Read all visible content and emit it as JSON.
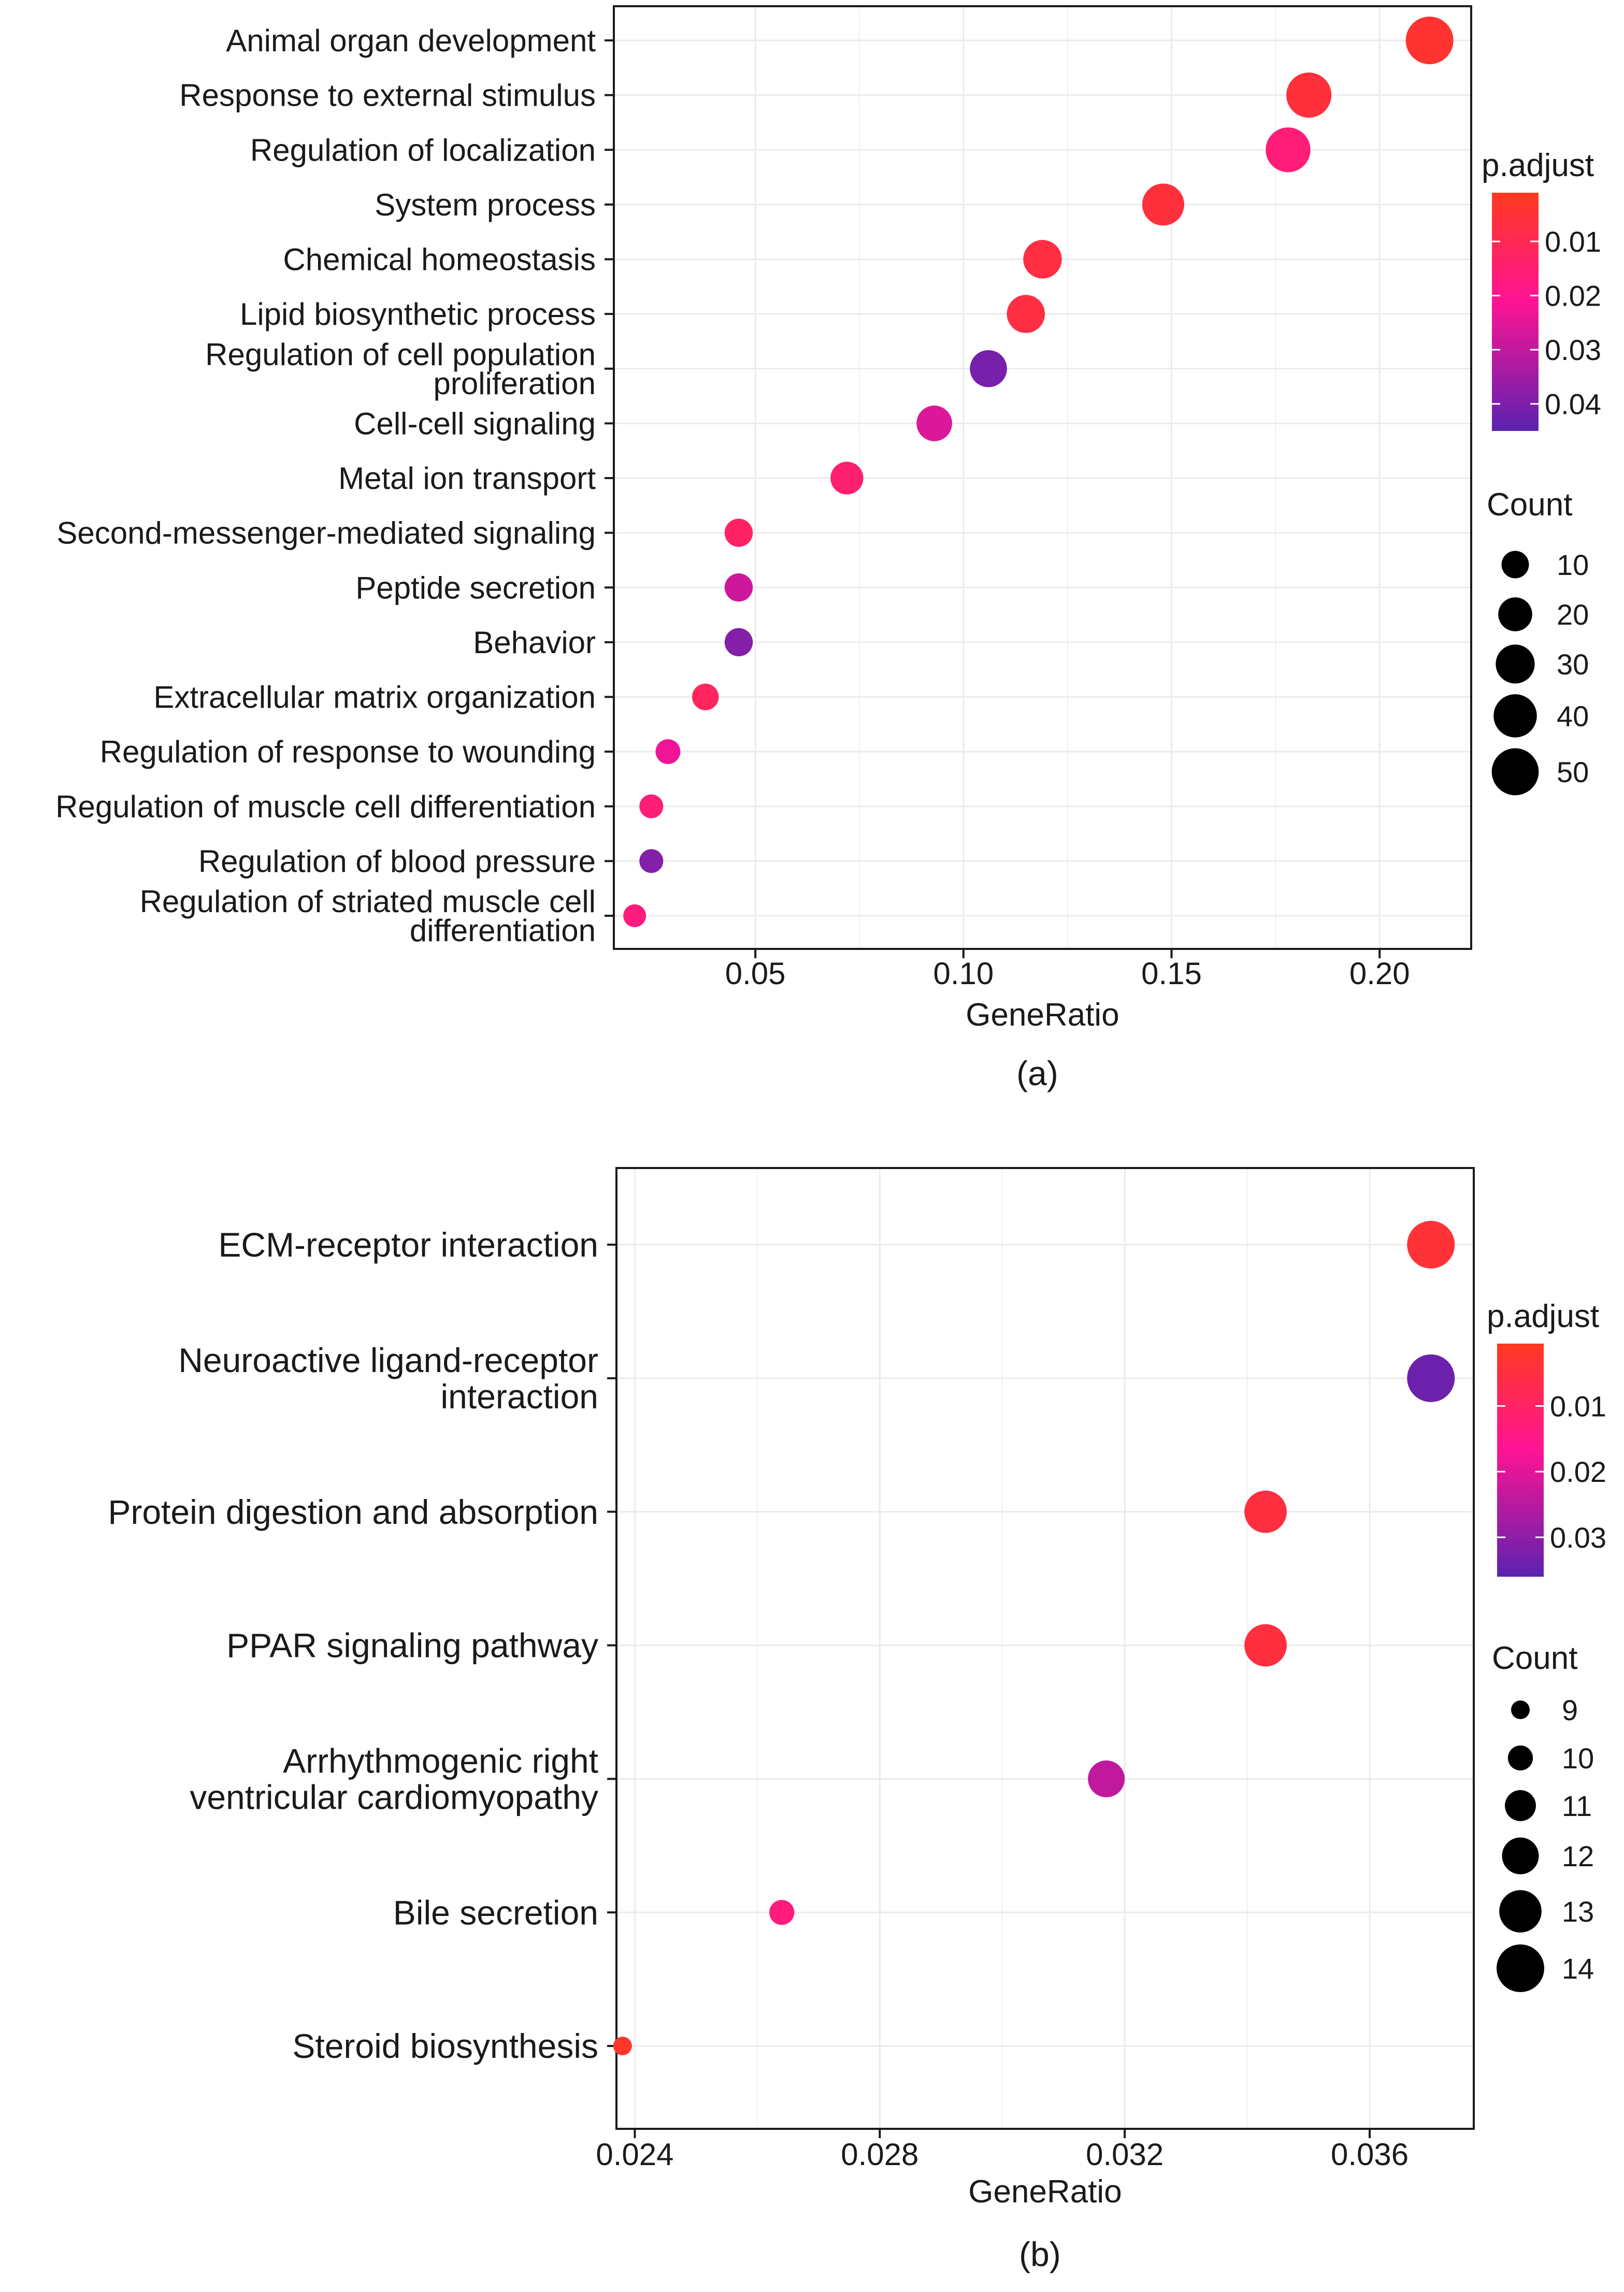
{
  "chart_data": [
    {
      "type": "scatter",
      "panel_label": "(a)",
      "xlabel": "GeneRatio",
      "xlim": [
        0.016,
        0.222
      ],
      "xticks": [
        0.05,
        0.1,
        0.15,
        0.2
      ],
      "xtick_labels": [
        "0.05",
        "0.10",
        "0.15",
        "0.20"
      ],
      "grid": true,
      "categories": [
        "Animal organ development",
        "Response to external stimulus",
        "Regulation of localization",
        "System process",
        "Chemical homeostasis",
        "Lipid biosynthetic process",
        "Regulation of cell population proliferation",
        "Cell-cell signaling",
        "Metal ion transport",
        "Second-messenger-mediated signaling",
        "Peptide secretion",
        "Behavior",
        "Extracellular matrix organization",
        "Regulation of response to wounding",
        "Regulation of muscle cell differentiation",
        "Regulation of blood pressure",
        "Regulation of striated muscle cell differentiation"
      ],
      "category_label_lines": [
        [
          "Animal organ development"
        ],
        [
          "Response to external stimulus"
        ],
        [
          "Regulation of localization"
        ],
        [
          "System process"
        ],
        [
          "Chemical homeostasis"
        ],
        [
          "Lipid biosynthetic process"
        ],
        [
          "Regulation of cell population",
          "proliferation"
        ],
        [
          "Cell-cell signaling"
        ],
        [
          "Metal ion transport"
        ],
        [
          "Second-messenger-mediated signaling"
        ],
        [
          "Peptide secretion"
        ],
        [
          "Behavior"
        ],
        [
          "Extracellular matrix organization"
        ],
        [
          "Regulation of response to wounding"
        ],
        [
          "Regulation of muscle cell differentiation"
        ],
        [
          "Regulation of blood pressure"
        ],
        [
          "Regulation of striated muscle cell",
          "differentiation"
        ]
      ],
      "gene_ratio": [
        0.212,
        0.183,
        0.178,
        0.148,
        0.119,
        0.115,
        0.106,
        0.093,
        0.072,
        0.046,
        0.046,
        0.046,
        0.038,
        0.029,
        0.025,
        0.025,
        0.021
      ],
      "count": [
        52,
        45,
        44,
        37,
        29,
        28,
        26,
        23,
        18,
        11,
        11,
        11,
        9,
        7,
        6,
        6,
        5
      ],
      "p_adjust": [
        0.004,
        0.006,
        0.016,
        0.006,
        0.007,
        0.007,
        0.041,
        0.026,
        0.015,
        0.013,
        0.028,
        0.039,
        0.012,
        0.023,
        0.016,
        0.039,
        0.017
      ],
      "color_legend": {
        "title": "p.adjust",
        "min": 0.001,
        "max": 0.045,
        "ticks": [
          0.01,
          0.02,
          0.03,
          0.04
        ],
        "tick_labels": [
          "0.01",
          "0.02",
          "0.03",
          "0.04"
        ]
      },
      "size_legend": {
        "title": "Count",
        "min_count": 5,
        "max_count": 52,
        "values": [
          10,
          20,
          30,
          40,
          50
        ],
        "labels": [
          "10",
          "20",
          "30",
          "40",
          "50"
        ]
      }
    },
    {
      "type": "scatter",
      "panel_label": "(b)",
      "xlabel": "GeneRatio",
      "xlim": [
        0.0237,
        0.0377
      ],
      "xticks": [
        0.024,
        0.028,
        0.032,
        0.036
      ],
      "xtick_labels": [
        "0.024",
        "0.028",
        "0.032",
        "0.036"
      ],
      "grid": true,
      "categories": [
        "ECM-receptor interaction",
        "Neuroactive ligand-receptor interaction",
        "Protein digestion and absorption",
        "PPAR signaling pathway",
        "Arrhythmogenic right ventricular cardiomyopathy",
        "Bile secretion",
        "Steroid biosynthesis"
      ],
      "category_label_lines": [
        [
          "ECM-receptor interaction"
        ],
        [
          "Neuroactive ligand-receptor",
          "interaction"
        ],
        [
          "Protein digestion and absorption"
        ],
        [
          "PPAR signaling pathway"
        ],
        [
          "Arrhythmogenic right",
          "ventricular cardiomyopathy"
        ],
        [
          "Bile secretion"
        ],
        [
          "Steroid biosynthesis"
        ]
      ],
      "gene_ratio": [
        0.037,
        0.037,
        0.0343,
        0.0343,
        0.0317,
        0.0264,
        0.0238
      ],
      "count": [
        14,
        14,
        13,
        13,
        12,
        10,
        9
      ],
      "p_adjust": [
        0.004,
        0.034,
        0.005,
        0.005,
        0.024,
        0.013,
        0.002
      ],
      "color_legend": {
        "title": "p.adjust",
        "min": 0.0005,
        "max": 0.036,
        "ticks": [
          0.01,
          0.02,
          0.03
        ],
        "tick_labels": [
          "0.01",
          "0.02",
          "0.03"
        ]
      },
      "size_legend": {
        "title": "Count",
        "min_count": 9,
        "max_count": 14,
        "values": [
          9,
          10,
          11,
          12,
          13,
          14
        ],
        "labels": [
          "9",
          "10",
          "11",
          "12",
          "13",
          "14"
        ]
      }
    }
  ],
  "colors": {
    "gradient_low_p": "#ff3a1f",
    "gradient_mid_p": "#ff1493",
    "gradient_high_p": "#5b22b0",
    "grid": "#ebebeb",
    "axis": "#1a1a1a",
    "point_legend": "#000000"
  }
}
